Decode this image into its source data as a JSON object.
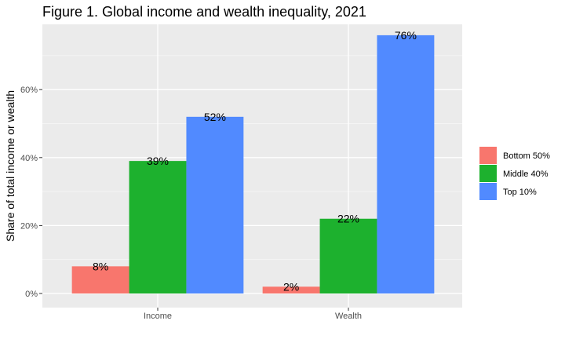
{
  "chart_data": {
    "type": "bar",
    "title": "Figure 1. Global income and wealth inequality, 2021",
    "xlabel": "",
    "ylabel": "Share of total income or wealth",
    "categories": [
      "Income",
      "Wealth"
    ],
    "series": [
      {
        "name": "Bottom 50%",
        "color": "#F8766D",
        "values": [
          8,
          2
        ],
        "labels": [
          "8%",
          "2%"
        ]
      },
      {
        "name": "Middle 40%",
        "color": "#1DB12E",
        "values": [
          39,
          22
        ],
        "labels": [
          "39%",
          "22%"
        ]
      },
      {
        "name": "Top 10%",
        "color": "#518AFF",
        "values": [
          52,
          76
        ],
        "labels": [
          "52%",
          "76%"
        ]
      }
    ],
    "ylim": [
      0,
      80
    ],
    "yticks": [
      0,
      20,
      40,
      60
    ],
    "ytick_labels": [
      "0%",
      "20%",
      "40%",
      "60%"
    ],
    "grid": true,
    "legend_position": "right"
  }
}
